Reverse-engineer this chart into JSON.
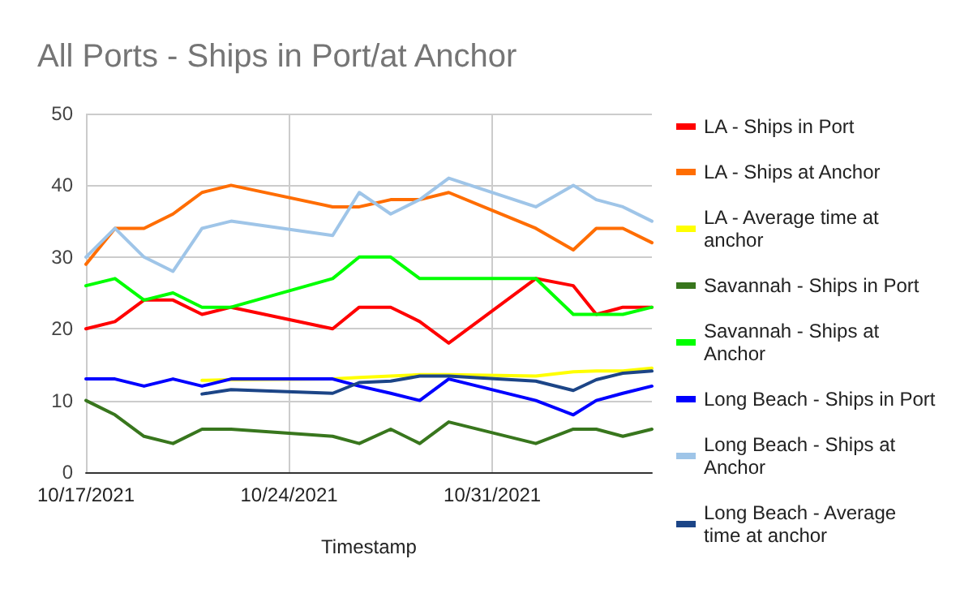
{
  "chart_data": {
    "type": "line",
    "title": "All Ports - Ships in Port/at Anchor",
    "xlabel": "Timestamp",
    "x": [
      "2021-10-17",
      "2021-10-18",
      "2021-10-19",
      "2021-10-20",
      "2021-10-21",
      "2021-10-22",
      "2021-10-25T12:00",
      "2021-10-26T10:00",
      "2021-10-27T12:00",
      "2021-10-28T12:00",
      "2021-10-29T12:00",
      "2021-11-01T12:00",
      "2021-11-02T19:00",
      "2021-11-03T14:00",
      "2021-11-04T12:00",
      "2021-11-05T12:00"
    ],
    "series": [
      {
        "name": "LA - Ships in Port",
        "color": "#ff0000",
        "values": [
          20,
          21,
          24,
          24,
          22,
          23,
          20,
          23,
          23,
          21,
          18,
          27,
          26,
          22,
          23,
          23
        ]
      },
      {
        "name": "LA - Ships at Anchor",
        "color": "#ff6d01",
        "values": [
          29,
          34,
          34,
          36,
          39,
          40,
          37,
          37,
          38,
          38,
          39,
          34,
          31,
          34,
          34,
          32
        ]
      },
      {
        "name": "LA - Average time at anchor",
        "color": "#ffff00",
        "values": [
          null,
          null,
          null,
          null,
          12.8,
          12.9,
          13,
          13.2,
          13.4,
          13.6,
          13.6,
          13.4,
          14,
          14.1,
          14.1,
          14.5
        ]
      },
      {
        "name": "Savannah - Ships in Port",
        "color": "#38761d",
        "values": [
          10,
          8,
          5,
          4,
          6,
          6,
          5,
          4,
          6,
          4,
          7,
          4,
          6,
          6,
          5,
          6
        ]
      },
      {
        "name": "Savannah - Ships at Anchor",
        "color": "#00ff00",
        "values": [
          26,
          27,
          24,
          25,
          23,
          23,
          27,
          30,
          30,
          27,
          27,
          27,
          22,
          22,
          22,
          23
        ]
      },
      {
        "name": "Long Beach - Ships in Port",
        "color": "#0000ff",
        "values": [
          13,
          13,
          12,
          13,
          12,
          13,
          13,
          12,
          11,
          10,
          13,
          10,
          8,
          10,
          11,
          12
        ]
      },
      {
        "name": "Long Beach - Ships at Anchor",
        "color": "#9fc5e8",
        "values": [
          30,
          34,
          30,
          28,
          34,
          35,
          33,
          39,
          36,
          38,
          41,
          37,
          40,
          38,
          37,
          35
        ]
      },
      {
        "name": "Long Beach - Average time at anchor",
        "color": "#1c4587",
        "values": [
          null,
          null,
          null,
          null,
          10.9,
          11.5,
          11,
          12.5,
          12.7,
          13.4,
          13.4,
          12.7,
          11.4,
          12.9,
          13.8,
          14.1
        ]
      }
    ],
    "xlim": [
      "2021-10-17",
      "2021-11-05T12:00"
    ],
    "xticks": [
      {
        "value": "2021-10-17",
        "label": "10/17/2021"
      },
      {
        "value": "2021-10-24",
        "label": "10/24/2021"
      },
      {
        "value": "2021-10-31",
        "label": "10/31/2021"
      }
    ],
    "ylim": [
      0,
      50
    ],
    "yticks": [
      0,
      10,
      20,
      30,
      40,
      50
    ],
    "grid": true,
    "legend": "right",
    "marker": "none",
    "line_style": "solid"
  }
}
